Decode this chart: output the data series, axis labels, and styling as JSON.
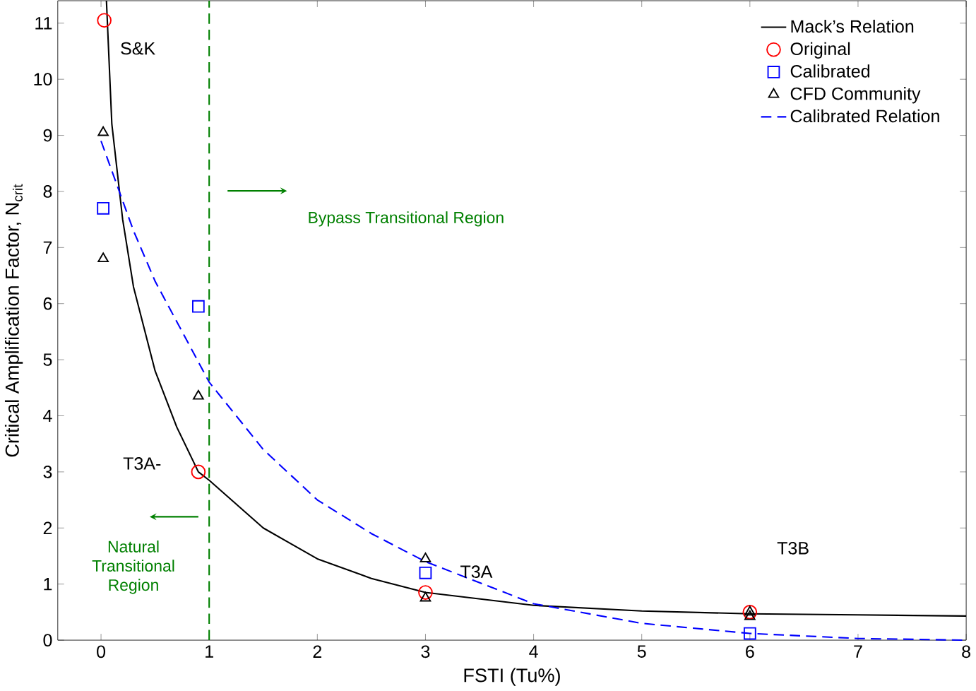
{
  "chart_data": {
    "type": "line",
    "xlabel": "FSTI (Tu%)",
    "ylabel": "Critical Amplification Factor, N$_{crit}$",
    "xlim": [
      -0.4,
      8
    ],
    "ylim": [
      0,
      11.4
    ],
    "xticks": [
      0,
      1,
      2,
      3,
      4,
      5,
      6,
      7,
      8
    ],
    "yticks": [
      0,
      1,
      2,
      3,
      4,
      5,
      6,
      7,
      8,
      9,
      10,
      11
    ],
    "grid": false,
    "legend": "top right",
    "series": [
      {
        "name": "Mack’s Relation",
        "color": "#000000",
        "line_style": "solid",
        "marker": "none",
        "x": [
          0.05,
          0.1,
          0.2,
          0.3,
          0.5,
          0.7,
          0.9,
          1.0,
          1.5,
          2,
          2.5,
          3,
          4,
          5,
          6,
          7,
          8
        ],
        "values": [
          11.4,
          9.2,
          7.5,
          6.3,
          4.8,
          3.8,
          3.0,
          2.85,
          2.0,
          1.45,
          1.1,
          0.85,
          0.62,
          0.52,
          0.47,
          0.45,
          0.43
        ]
      },
      {
        "name": "Original",
        "type": "scatter",
        "color": "#ff0000",
        "marker": "circle",
        "x": [
          0.03,
          0.9,
          3,
          6
        ],
        "values": [
          11.05,
          3.0,
          0.85,
          0.5
        ]
      },
      {
        "name": "Calibrated",
        "type": "scatter",
        "color": "#0000ff",
        "marker": "square",
        "x": [
          0.02,
          0.9,
          3,
          6
        ],
        "values": [
          7.7,
          5.95,
          1.2,
          0.12
        ]
      },
      {
        "name": "CFD Community",
        "type": "scatter",
        "color": "#000000",
        "marker": "triangle",
        "x": [
          0.02,
          0.02,
          0.9,
          3,
          3,
          6,
          6
        ],
        "values": [
          9.05,
          6.8,
          4.35,
          1.45,
          0.75,
          0.5,
          0.42
        ]
      },
      {
        "name": "Calibrated Relation",
        "color": "#0000ff",
        "line_style": "dashed",
        "marker": "none",
        "x": [
          0,
          0.3,
          0.5,
          1,
          1.5,
          2,
          2.5,
          3,
          4,
          5,
          6,
          7,
          8
        ],
        "values": [
          8.9,
          7.3,
          6.4,
          4.6,
          3.4,
          2.5,
          1.9,
          1.4,
          0.65,
          0.3,
          0.12,
          0.03,
          0.0
        ]
      }
    ],
    "ref_lines": [
      {
        "axis": "x",
        "value": 1,
        "color": "#008000",
        "line_style": "dashed"
      }
    ],
    "annotations": [
      {
        "text": "S&K",
        "x": 0.03,
        "y": 11.05
      },
      {
        "text": "T3A-",
        "x": 0.9,
        "y": 3.0
      },
      {
        "text": "T3A",
        "x": 3,
        "y": 1.2
      },
      "T3B",
      "Bypass Transitional Region",
      {
        "text": "Natural Transitional Region",
        "x": 1,
        "y": 1.3
      }
    ]
  }
}
